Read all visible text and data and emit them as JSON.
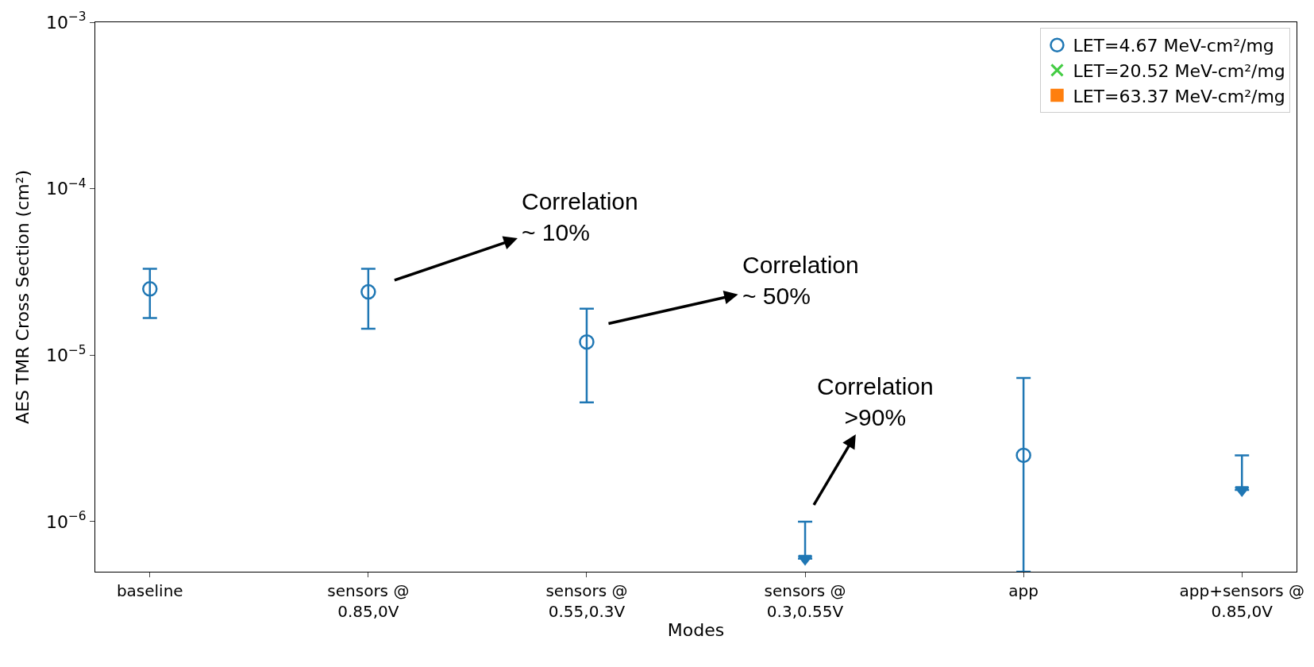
{
  "chart_data": {
    "type": "scatter",
    "xlabel": "Modes",
    "ylabel": "AES TMR Cross Section (cm²)",
    "categories": [
      "baseline",
      "sensors @\n0.85,0V",
      "sensors @\n0.55,0.3V",
      "sensors @\n0.3,0.55V",
      "app",
      "app+sensors @\n0.85,0V"
    ],
    "log": true,
    "ylim": [
      5e-07,
      0.001
    ],
    "yticks": [
      {
        "value": 1e-06,
        "label": "10$^{−6}$"
      },
      {
        "value": 1e-05,
        "label": "10$^{−5}$"
      },
      {
        "value": 0.0001,
        "label": "10$^{−4}$"
      },
      {
        "value": 0.001,
        "label": "10$^{−3}$"
      }
    ],
    "legend": "top right",
    "series": [
      {
        "name": "LET=4.67 MeV-cm²/mg",
        "color": "#1f77b4",
        "marker": "circle",
        "values": [
          2.5e-05,
          2.4e-05,
          1.2e-05,
          null,
          2.5e-06,
          null
        ],
        "errors": [
          [
            1.67e-05,
            3.3e-05
          ],
          [
            1.44e-05,
            3.3e-05
          ],
          [
            5.2e-06,
            1.9e-05
          ],
          null,
          [
            5e-07,
            7.3e-06
          ],
          null
        ]
      },
      {
        "name": "LET=20.52 MeV-cm²/mg",
        "color": "#44cc44",
        "marker": "cross",
        "values": [
          null,
          null,
          null,
          null,
          null,
          null
        ]
      },
      {
        "name": "LET=63.37 MeV-cm²/mg",
        "color": "#ff7f0e",
        "marker": "square",
        "values": [
          null,
          null,
          null,
          null,
          null,
          null
        ]
      },
      {
        "color": "#1f77b4",
        "marker": "triangle",
        "values": [
          null,
          null,
          null,
          6e-07,
          null,
          1.55e-06
        ],
        "errors": [
          null,
          null,
          null,
          [
            6e-07,
            1e-06
          ],
          null,
          [
            1.55e-06,
            2.5e-06
          ]
        ]
      }
    ],
    "annotations": [
      "Correlation\n~ 10%",
      "Correlation\n~ 50%",
      "Correlation\n>90%"
    ]
  }
}
